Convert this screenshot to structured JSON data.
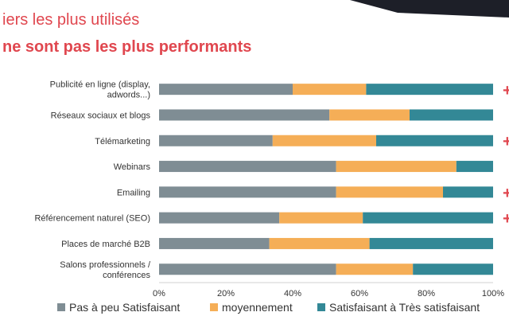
{
  "title_line1": "iers les plus utilisés",
  "title_line2": "ne sont pas les plus performants",
  "colors": {
    "title": "#e0474f",
    "series": [
      "#7f8d94",
      "#f5ae57",
      "#338896"
    ]
  },
  "marker_text": "+",
  "chart_data": {
    "type": "bar",
    "orientation": "horizontal",
    "stacked": true,
    "categories": [
      [
        "Publicité en ligne (display,",
        "adwords...)"
      ],
      [
        "Réseaux sociaux et blogs"
      ],
      [
        "Télémarketing"
      ],
      [
        "Webinars"
      ],
      [
        "Emailing"
      ],
      [
        "Référencement naturel (SEO)"
      ],
      [
        "Places de marché B2B"
      ],
      [
        "Salons professionnels /",
        "conférences"
      ]
    ],
    "series": [
      {
        "name": "Pas à peu Satisfaisant",
        "values": [
          40,
          51,
          34,
          53,
          53,
          36,
          33,
          53
        ]
      },
      {
        "name": "moyennement",
        "values": [
          22,
          24,
          31,
          36,
          32,
          25,
          30,
          23
        ]
      },
      {
        "name": "Satisfaisant à Très satisfaisant",
        "values": [
          38,
          25,
          35,
          11,
          15,
          39,
          37,
          24
        ]
      }
    ],
    "x_ticks": [
      "0%",
      "20%",
      "40%",
      "60%",
      "80%",
      "100%"
    ],
    "xlim": [
      0,
      100
    ],
    "legend_position": "bottom",
    "grid": false
  }
}
